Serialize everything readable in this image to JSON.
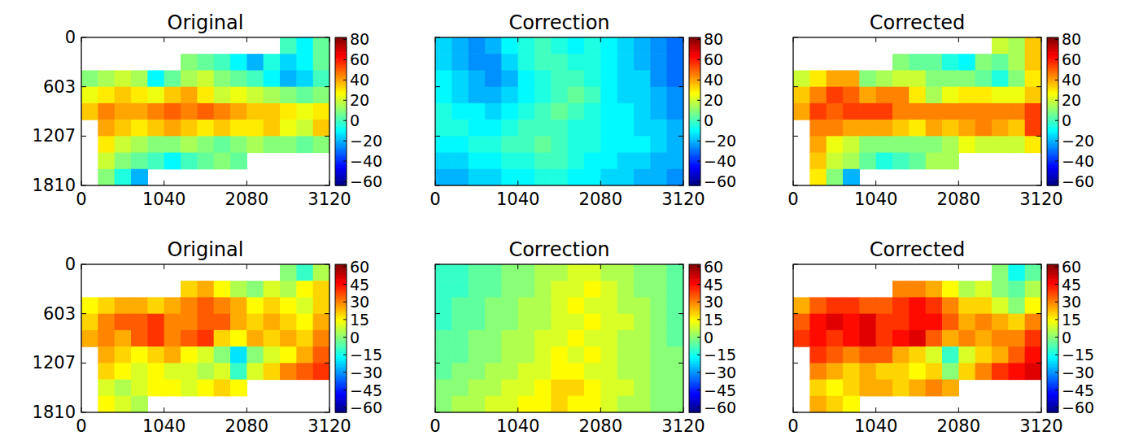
{
  "chart_data": [
    {
      "type": "heatmap",
      "title": "Original",
      "xlim": [
        0,
        3120
      ],
      "ylim": [
        1810,
        0
      ],
      "xticks": [
        0,
        1040,
        2080,
        3120
      ],
      "yticks": [
        0,
        603,
        1207,
        1810
      ],
      "colorbar_range": [
        -64,
        82
      ],
      "colorbar_ticks": [
        80,
        60,
        40,
        20,
        0,
        {
          "value": -20,
          "label": "−20"
        },
        {
          "value": -40,
          "label": "−40"
        },
        {
          "value": -60,
          "label": "−60"
        }
      ],
      "cells": [
        [
          null,
          null,
          null,
          null,
          null,
          null,
          null,
          null,
          null,
          null,
          null,
          null,
          0,
          -10,
          5
        ],
        [
          null,
          null,
          null,
          null,
          null,
          null,
          10,
          5,
          0,
          -10,
          -20,
          -5,
          -15,
          -10,
          5
        ],
        [
          10,
          15,
          20,
          15,
          -10,
          5,
          15,
          20,
          10,
          5,
          0,
          -10,
          -20,
          -15,
          0
        ],
        [
          25,
          30,
          35,
          30,
          25,
          35,
          40,
          30,
          20,
          25,
          20,
          15,
          10,
          5,
          10
        ],
        [
          35,
          45,
          40,
          40,
          45,
          50,
          45,
          50,
          45,
          40,
          35,
          35,
          30,
          25,
          30
        ],
        [
          null,
          40,
          35,
          30,
          35,
          40,
          35,
          30,
          35,
          30,
          30,
          35,
          25,
          20,
          35
        ],
        [
          null,
          30,
          20,
          15,
          10,
          10,
          15,
          10,
          5,
          10,
          15,
          10,
          10,
          5,
          10
        ],
        [
          null,
          20,
          10,
          5,
          0,
          -10,
          0,
          5,
          10,
          5,
          null,
          null,
          null,
          null,
          null
        ],
        [
          null,
          10,
          -5,
          -20,
          null,
          null,
          null,
          null,
          null,
          null,
          null,
          null,
          null,
          null,
          null
        ]
      ]
    },
    {
      "type": "heatmap",
      "title": "Correction",
      "xlim": [
        0,
        3120
      ],
      "ylim": [
        1810,
        0
      ],
      "xticks": [
        0,
        1040,
        2080,
        3120
      ],
      "yticks": [
        0,
        603,
        1207,
        1810
      ],
      "tick_labels": "x",
      "colorbar_range": [
        -64,
        82
      ],
      "colorbar_ticks": [
        80,
        60,
        40,
        20,
        0,
        {
          "value": -20,
          "label": "−20"
        },
        {
          "value": -40,
          "label": "−40"
        },
        {
          "value": -60,
          "label": "−60"
        }
      ],
      "cells": [
        [
          -15,
          -20,
          -25,
          -20,
          -10,
          -5,
          0,
          -5,
          -10,
          -5,
          -10,
          -15,
          -20,
          -25,
          -30
        ],
        [
          -15,
          -20,
          -25,
          -25,
          -15,
          -5,
          0,
          0,
          -5,
          -5,
          -10,
          -15,
          -20,
          -25,
          -30
        ],
        [
          -10,
          -15,
          -20,
          -25,
          -20,
          -10,
          -5,
          0,
          0,
          -5,
          -10,
          -15,
          -15,
          -25,
          -30
        ],
        [
          -10,
          -15,
          -20,
          -20,
          -15,
          -10,
          -5,
          0,
          5,
          0,
          -10,
          -15,
          -15,
          -20,
          -25
        ],
        [
          -5,
          -10,
          -10,
          -15,
          -10,
          -5,
          0,
          5,
          0,
          -5,
          -10,
          -10,
          -15,
          -20,
          -25
        ],
        [
          -5,
          -5,
          -10,
          -10,
          -5,
          0,
          0,
          0,
          -5,
          -5,
          -10,
          -10,
          -15,
          -15,
          -20
        ],
        [
          -10,
          -10,
          -5,
          -5,
          0,
          0,
          5,
          0,
          -5,
          -5,
          -10,
          -10,
          -10,
          -15,
          -20
        ],
        [
          -15,
          -15,
          -10,
          -10,
          -5,
          -5,
          0,
          0,
          -5,
          -10,
          -10,
          -15,
          -15,
          -20,
          -20
        ],
        [
          -20,
          -20,
          -15,
          -15,
          -10,
          -10,
          -5,
          -5,
          -10,
          -10,
          -15,
          -15,
          -20,
          -20,
          -25
        ]
      ]
    },
    {
      "type": "heatmap",
      "title": "Corrected",
      "xlim": [
        0,
        3120
      ],
      "ylim": [
        1810,
        0
      ],
      "xticks": [
        0,
        1040,
        2080,
        3120
      ],
      "yticks": [
        0,
        603,
        1207,
        1810
      ],
      "tick_labels": "x",
      "colorbar_range": [
        -64,
        82
      ],
      "colorbar_ticks": [
        80,
        60,
        40,
        20,
        0,
        {
          "value": -20,
          "label": "−20"
        },
        {
          "value": -40,
          "label": "−40"
        },
        {
          "value": -60,
          "label": "−60"
        }
      ],
      "cells": [
        [
          null,
          null,
          null,
          null,
          null,
          null,
          null,
          null,
          null,
          null,
          null,
          null,
          20,
          15,
          35
        ],
        [
          null,
          null,
          null,
          null,
          null,
          null,
          10,
          5,
          5,
          -5,
          -10,
          10,
          5,
          15,
          35
        ],
        [
          20,
          30,
          40,
          40,
          10,
          15,
          20,
          20,
          10,
          10,
          10,
          5,
          -5,
          10,
          30
        ],
        [
          35,
          45,
          55,
          50,
          40,
          45,
          45,
          30,
          15,
          25,
          30,
          30,
          25,
          25,
          35
        ],
        [
          40,
          55,
          50,
          55,
          55,
          55,
          45,
          45,
          45,
          45,
          45,
          45,
          45,
          45,
          55
        ],
        [
          null,
          45,
          45,
          40,
          40,
          40,
          35,
          30,
          40,
          35,
          40,
          45,
          40,
          35,
          55
        ],
        [
          null,
          40,
          25,
          20,
          10,
          10,
          10,
          10,
          10,
          15,
          25,
          20,
          20,
          20,
          30
        ],
        [
          null,
          35,
          20,
          15,
          5,
          -5,
          0,
          5,
          15,
          15,
          null,
          null,
          null,
          null,
          null
        ],
        [
          null,
          30,
          10,
          -20,
          null,
          null,
          null,
          null,
          null,
          null,
          null,
          null,
          null,
          null,
          null
        ]
      ]
    },
    {
      "type": "heatmap",
      "title": "Original",
      "xlim": [
        0,
        3120
      ],
      "ylim": [
        1810,
        0
      ],
      "xticks": [
        0,
        1040,
        2080,
        3120
      ],
      "yticks": [
        0,
        603,
        1207,
        1810
      ],
      "colorbar_range": [
        -64,
        62
      ],
      "colorbar_ticks": [
        60,
        45,
        30,
        15,
        0,
        {
          "value": -15,
          "label": "−15"
        },
        {
          "value": -30,
          "label": "−30"
        },
        {
          "value": -45,
          "label": "−45"
        },
        {
          "value": -60,
          "label": "−60"
        }
      ],
      "cells": [
        [
          null,
          null,
          null,
          null,
          null,
          null,
          null,
          null,
          null,
          null,
          null,
          null,
          0,
          -10,
          5
        ],
        [
          null,
          null,
          null,
          null,
          null,
          null,
          20,
          25,
          15,
          5,
          0,
          10,
          5,
          15,
          20
        ],
        [
          15,
          20,
          25,
          25,
          20,
          25,
          30,
          35,
          30,
          25,
          15,
          20,
          15,
          10,
          20
        ],
        [
          20,
          30,
          35,
          35,
          40,
          30,
          30,
          35,
          35,
          25,
          20,
          25,
          20,
          15,
          25
        ],
        [
          25,
          30,
          25,
          35,
          40,
          30,
          35,
          40,
          20,
          15,
          25,
          20,
          25,
          20,
          30
        ],
        [
          null,
          25,
          20,
          15,
          20,
          25,
          15,
          10,
          0,
          -20,
          0,
          10,
          15,
          25,
          35
        ],
        [
          null,
          20,
          15,
          10,
          15,
          10,
          10,
          5,
          10,
          -10,
          10,
          20,
          30,
          35,
          40
        ],
        [
          null,
          10,
          5,
          10,
          15,
          15,
          10,
          15,
          20,
          15,
          null,
          null,
          null,
          null,
          null
        ],
        [
          null,
          15,
          10,
          5,
          null,
          null,
          null,
          null,
          null,
          null,
          null,
          null,
          null,
          null,
          null
        ]
      ]
    },
    {
      "type": "heatmap",
      "title": "Correction",
      "xlim": [
        0,
        3120
      ],
      "ylim": [
        1810,
        0
      ],
      "xticks": [
        0,
        1040,
        2080,
        3120
      ],
      "yticks": [
        0,
        603,
        1207,
        1810
      ],
      "tick_labels": "x",
      "colorbar_range": [
        -64,
        62
      ],
      "colorbar_ticks": [
        60,
        45,
        30,
        15,
        0,
        {
          "value": -15,
          "label": "−15"
        },
        {
          "value": -30,
          "label": "−30"
        },
        {
          "value": -45,
          "label": "−45"
        },
        {
          "value": -60,
          "label": "−60"
        }
      ],
      "cells": [
        [
          -10,
          -10,
          -5,
          -5,
          0,
          0,
          5,
          5,
          10,
          10,
          5,
          5,
          0,
          0,
          -5
        ],
        [
          -10,
          -10,
          -5,
          -5,
          0,
          0,
          5,
          10,
          10,
          15,
          10,
          5,
          0,
          0,
          -5
        ],
        [
          -10,
          -5,
          -5,
          0,
          0,
          5,
          5,
          10,
          15,
          10,
          10,
          5,
          5,
          0,
          -5
        ],
        [
          -10,
          -5,
          -5,
          0,
          0,
          5,
          5,
          10,
          10,
          15,
          10,
          10,
          5,
          0,
          -5
        ],
        [
          -5,
          -5,
          0,
          0,
          5,
          5,
          10,
          10,
          15,
          10,
          10,
          5,
          5,
          0,
          -5
        ],
        [
          -5,
          -5,
          0,
          0,
          5,
          5,
          10,
          15,
          10,
          15,
          10,
          5,
          5,
          0,
          0
        ],
        [
          -5,
          0,
          0,
          5,
          5,
          10,
          10,
          15,
          15,
          10,
          10,
          5,
          5,
          0,
          0
        ],
        [
          0,
          0,
          5,
          5,
          10,
          10,
          15,
          20,
          20,
          15,
          10,
          10,
          5,
          0,
          0
        ],
        [
          0,
          5,
          5,
          10,
          10,
          15,
          15,
          20,
          15,
          15,
          10,
          5,
          5,
          0,
          0
        ]
      ]
    },
    {
      "type": "heatmap",
      "title": "Corrected",
      "xlim": [
        0,
        3120
      ],
      "ylim": [
        1810,
        0
      ],
      "xticks": [
        0,
        1040,
        2080,
        3120
      ],
      "yticks": [
        0,
        603,
        1207,
        1810
      ],
      "tick_labels": "x",
      "colorbar_range": [
        -64,
        62
      ],
      "colorbar_ticks": [
        60,
        45,
        30,
        15,
        0,
        {
          "value": -15,
          "label": "−15"
        },
        {
          "value": -30,
          "label": "−30"
        },
        {
          "value": -45,
          "label": "−45"
        },
        {
          "value": -60,
          "label": "−60"
        }
      ],
      "cells": [
        [
          null,
          null,
          null,
          null,
          null,
          null,
          null,
          null,
          null,
          null,
          null,
          null,
          0,
          -15,
          -5
        ],
        [
          null,
          null,
          null,
          null,
          null,
          null,
          30,
          30,
          25,
          15,
          5,
          10,
          0,
          -5,
          5
        ],
        [
          25,
          35,
          40,
          40,
          35,
          35,
          40,
          45,
          40,
          30,
          20,
          20,
          10,
          0,
          15
        ],
        [
          35,
          45,
          50,
          45,
          50,
          40,
          40,
          45,
          45,
          35,
          25,
          30,
          25,
          20,
          30
        ],
        [
          40,
          45,
          40,
          45,
          50,
          40,
          45,
          50,
          35,
          25,
          30,
          25,
          30,
          30,
          40
        ],
        [
          null,
          40,
          35,
          30,
          35,
          35,
          25,
          20,
          10,
          -10,
          10,
          20,
          25,
          35,
          45
        ],
        [
          null,
          30,
          25,
          20,
          25,
          20,
          20,
          15,
          20,
          0,
          20,
          30,
          40,
          45,
          50
        ],
        [
          null,
          20,
          15,
          20,
          25,
          25,
          20,
          25,
          30,
          25,
          null,
          null,
          null,
          null,
          null
        ],
        [
          null,
          25,
          20,
          15,
          null,
          null,
          null,
          null,
          null,
          null,
          null,
          null,
          null,
          null,
          null
        ]
      ]
    }
  ]
}
